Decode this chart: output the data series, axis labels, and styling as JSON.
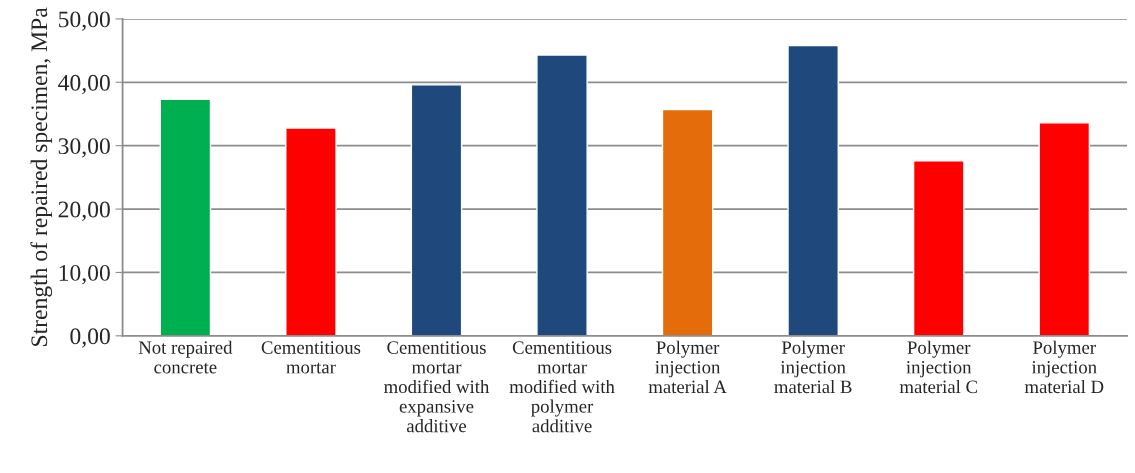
{
  "chart_data": {
    "type": "bar",
    "ylabel": "Strength of repaired specimen, MPa",
    "categories": [
      "Not repaired\nconcrete",
      "Cementitious\nmortar",
      "Cementitious\nmortar\nmodified with\nexpansive\nadditive",
      "Cementitious\nmortar\nmodified with\npolymer\nadditive",
      "Polymer\ninjection\nmaterial A",
      "Polymer\ninjection\nmaterial B",
      "Polymer\ninjection\nmaterial C",
      "Polymer\ninjection\nmaterial D"
    ],
    "values": [
      37.3,
      32.8,
      39.6,
      44.3,
      35.7,
      45.8,
      27.6,
      33.6
    ],
    "colors": [
      "#00b050",
      "#ff0000",
      "#1f497d",
      "#1f497d",
      "#e46c0a",
      "#1f497d",
      "#ff0000",
      "#ff0000"
    ],
    "ylim": [
      0,
      50
    ],
    "yticks": [
      {
        "value": 0,
        "label": "0,00"
      },
      {
        "value": 10,
        "label": "10,00"
      },
      {
        "value": 20,
        "label": "20,00"
      },
      {
        "value": 30,
        "label": "30,00"
      },
      {
        "value": 40,
        "label": "40,00"
      },
      {
        "value": 50,
        "label": "50,00"
      }
    ],
    "grid": "y",
    "legend": false
  }
}
